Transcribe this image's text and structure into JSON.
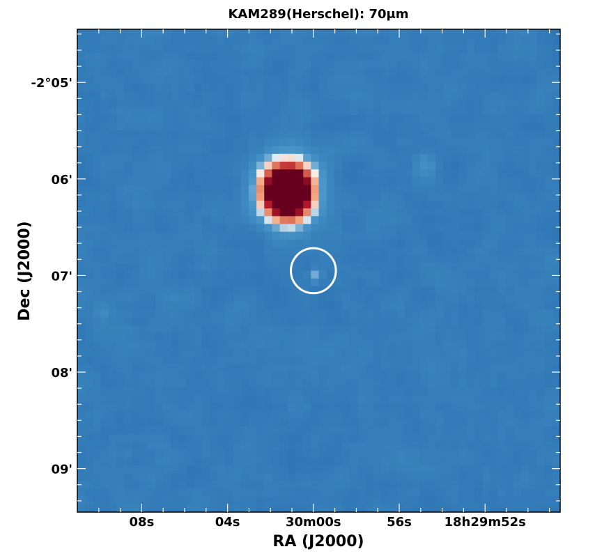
{
  "chart_data": {
    "type": "heatmap",
    "title": "KAM289(Herschel): 70μm",
    "xlabel": "RA (J2000)",
    "ylabel": "Dec (J2000)",
    "x_ticks": [
      {
        "label": "08s",
        "ra_sec": 8
      },
      {
        "label": "04s",
        "ra_sec": 4
      },
      {
        "label": "30m00s",
        "ra_sec": 0
      },
      {
        "label": "56s",
        "ra_sec": -4
      },
      {
        "label": "18h29m52s",
        "ra_sec": -8
      }
    ],
    "y_ticks": [
      {
        "label": "-2°05'",
        "dec_arcmin": 5
      },
      {
        "label": "06'",
        "dec_arcmin": 6
      },
      {
        "label": "07'",
        "dec_arcmin": 7
      },
      {
        "label": "08'",
        "dec_arcmin": 8
      },
      {
        "label": "09'",
        "dec_arcmin": 9
      }
    ],
    "xlim_ra_sec": [
      11,
      -11.5
    ],
    "ylim_dec_arcmin": [
      4.45,
      9.45
    ],
    "colormap": [
      "#1f5d9e",
      "#2a6fb0",
      "#3b86bf",
      "#4c97c9",
      "#f7f7f7",
      "#f4a582",
      "#d6604d",
      "#b2182b",
      "#67001f"
    ],
    "background_level": 0.2,
    "sources": [
      {
        "ra_sec": 1.2,
        "dec_arcmin": 6.13,
        "peak": 1.0,
        "sigma_arcsec": 12,
        "description": "bright saturated source"
      },
      {
        "ra_sec": -0.1,
        "dec_arcmin": 7.0,
        "peak": 0.14,
        "sigma_arcsec": 3
      },
      {
        "ra_sec": -5.2,
        "dec_arcmin": 5.85,
        "peak": 0.06,
        "sigma_arcsec": 5
      },
      {
        "ra_sec": 9.8,
        "dec_arcmin": 7.37,
        "peak": 0.05,
        "sigma_arcsec": 4
      }
    ],
    "annotations": [
      {
        "type": "circle",
        "ra_sec": 0.0,
        "dec_arcmin": 6.95,
        "radius_arcsec": 14,
        "color": "#ffffff"
      }
    ]
  }
}
